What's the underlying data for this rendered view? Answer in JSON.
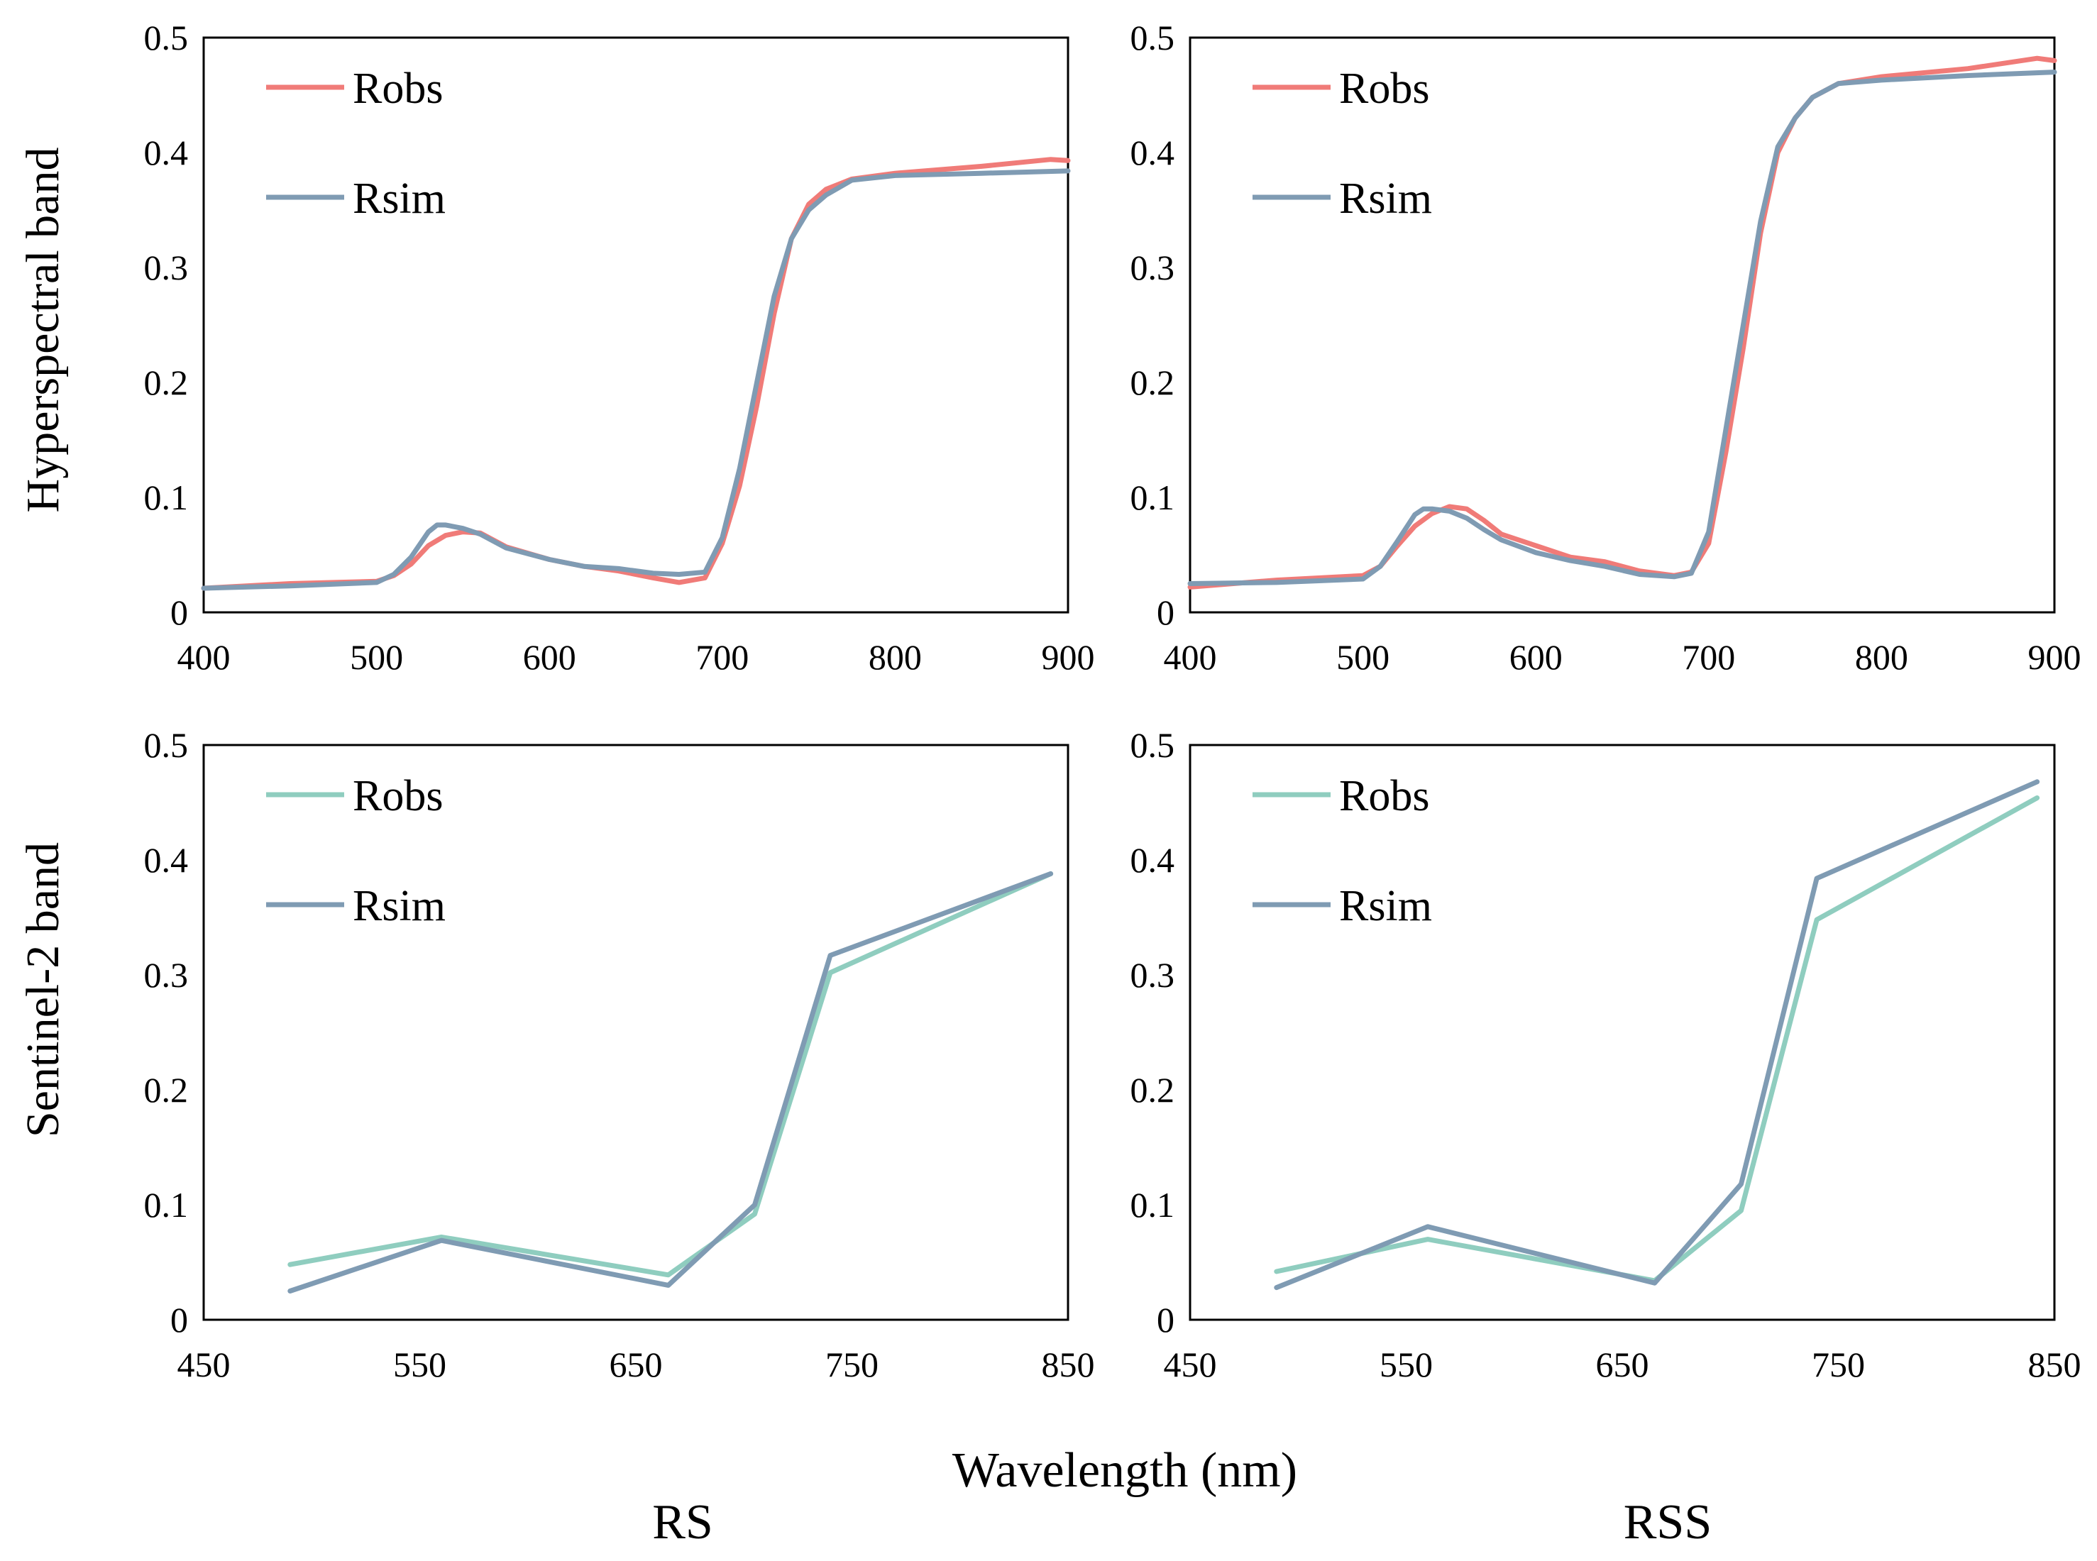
{
  "figure": {
    "row_labels": [
      "Hyperspectral  band",
      "Sentinel-2 band"
    ],
    "xlabel": "Wavelength  (nm)",
    "column_labels": [
      "RS",
      "RSS"
    ],
    "colors": {
      "robs_hyper": "#f07b78",
      "rsim": "#7f9bb3",
      "robs_s2": "#8fcdbf"
    }
  },
  "chart_data": [
    {
      "id": "hyper-rs",
      "type": "line",
      "xlim": [
        400,
        900
      ],
      "ylim": [
        0,
        0.5
      ],
      "xticks": [
        "400",
        "500",
        "600",
        "700",
        "800",
        "900"
      ],
      "yticks": [
        "0",
        "0.1",
        "0.2",
        "0.3",
        "0.4",
        "0.5"
      ],
      "legend": [
        "Robs",
        "Rsim"
      ],
      "series": [
        {
          "name": "Robs",
          "color": "#f07b78",
          "x": [
            400,
            450,
            500,
            510,
            520,
            530,
            540,
            550,
            560,
            575,
            600,
            620,
            640,
            660,
            675,
            690,
            700,
            710,
            720,
            730,
            740,
            750,
            760,
            775,
            800,
            850,
            890,
            900
          ],
          "y": [
            0.021,
            0.025,
            0.027,
            0.032,
            0.042,
            0.058,
            0.067,
            0.07,
            0.069,
            0.057,
            0.046,
            0.04,
            0.036,
            0.03,
            0.026,
            0.03,
            0.06,
            0.11,
            0.18,
            0.26,
            0.325,
            0.355,
            0.368,
            0.377,
            0.382,
            0.388,
            0.394,
            0.393
          ]
        },
        {
          "name": "Rsim",
          "color": "#7f9bb3",
          "x": [
            400,
            450,
            500,
            510,
            520,
            530,
            535,
            540,
            550,
            560,
            575,
            600,
            620,
            640,
            660,
            675,
            690,
            700,
            710,
            720,
            730,
            740,
            750,
            760,
            775,
            800,
            850,
            900
          ],
          "y": [
            0.021,
            0.023,
            0.026,
            0.033,
            0.048,
            0.07,
            0.076,
            0.076,
            0.073,
            0.068,
            0.056,
            0.046,
            0.04,
            0.038,
            0.034,
            0.033,
            0.035,
            0.065,
            0.125,
            0.2,
            0.275,
            0.325,
            0.35,
            0.363,
            0.376,
            0.38,
            0.382,
            0.384
          ]
        }
      ]
    },
    {
      "id": "hyper-rss",
      "type": "line",
      "xlim": [
        400,
        900
      ],
      "ylim": [
        0,
        0.5
      ],
      "xticks": [
        "400",
        "500",
        "600",
        "700",
        "800",
        "900"
      ],
      "yticks": [
        "0",
        "0.1",
        "0.2",
        "0.3",
        "0.4",
        "0.5"
      ],
      "legend": [
        "Robs",
        "Rsim"
      ],
      "series": [
        {
          "name": "Robs",
          "color": "#f07b78",
          "x": [
            400,
            450,
            500,
            510,
            520,
            530,
            540,
            550,
            560,
            570,
            580,
            600,
            620,
            640,
            660,
            680,
            690,
            700,
            710,
            720,
            730,
            740,
            750,
            760,
            775,
            800,
            850,
            890,
            900
          ],
          "y": [
            0.022,
            0.028,
            0.032,
            0.04,
            0.058,
            0.075,
            0.086,
            0.092,
            0.09,
            0.08,
            0.068,
            0.058,
            0.048,
            0.044,
            0.036,
            0.032,
            0.035,
            0.06,
            0.14,
            0.23,
            0.33,
            0.4,
            0.43,
            0.448,
            0.46,
            0.466,
            0.473,
            0.482,
            0.48
          ]
        },
        {
          "name": "Rsim",
          "color": "#7f9bb3",
          "x": [
            400,
            450,
            500,
            510,
            520,
            530,
            535,
            540,
            550,
            560,
            570,
            580,
            600,
            620,
            640,
            660,
            680,
            690,
            700,
            710,
            720,
            730,
            740,
            750,
            760,
            775,
            800,
            850,
            900
          ],
          "y": [
            0.025,
            0.026,
            0.029,
            0.04,
            0.062,
            0.085,
            0.09,
            0.09,
            0.088,
            0.082,
            0.072,
            0.063,
            0.052,
            0.045,
            0.04,
            0.033,
            0.031,
            0.034,
            0.07,
            0.16,
            0.25,
            0.34,
            0.405,
            0.43,
            0.448,
            0.46,
            0.463,
            0.467,
            0.47
          ]
        }
      ]
    },
    {
      "id": "s2-rs",
      "type": "line",
      "xlim": [
        450,
        850
      ],
      "ylim": [
        0,
        0.5
      ],
      "xticks": [
        "450",
        "550",
        "650",
        "750",
        "850"
      ],
      "yticks": [
        "0",
        "0.1",
        "0.2",
        "0.3",
        "0.4",
        "0.5"
      ],
      "legend": [
        "Robs",
        "Rsim"
      ],
      "series": [
        {
          "name": "Robs",
          "color": "#8fcdbf",
          "x": [
            490,
            560,
            665,
            705,
            740,
            842
          ],
          "y": [
            0.048,
            0.072,
            0.039,
            0.092,
            0.302,
            0.388
          ]
        },
        {
          "name": "Rsim",
          "color": "#7f9bb3",
          "x": [
            490,
            560,
            665,
            705,
            740,
            842
          ],
          "y": [
            0.025,
            0.069,
            0.03,
            0.1,
            0.317,
            0.388
          ]
        }
      ]
    },
    {
      "id": "s2-rss",
      "type": "line",
      "xlim": [
        450,
        850
      ],
      "ylim": [
        0,
        0.5
      ],
      "xticks": [
        "450",
        "550",
        "650",
        "750",
        "850"
      ],
      "yticks": [
        "0",
        "0.1",
        "0.2",
        "0.3",
        "0.4",
        "0.5"
      ],
      "legend": [
        "Robs",
        "Rsim"
      ],
      "series": [
        {
          "name": "Robs",
          "color": "#8fcdbf",
          "x": [
            490,
            560,
            665,
            705,
            740,
            842
          ],
          "y": [
            0.042,
            0.07,
            0.034,
            0.095,
            0.348,
            0.454
          ]
        },
        {
          "name": "Rsim",
          "color": "#7f9bb3",
          "x": [
            490,
            560,
            665,
            705,
            740,
            842
          ],
          "y": [
            0.028,
            0.081,
            0.032,
            0.118,
            0.384,
            0.468
          ]
        }
      ]
    }
  ]
}
